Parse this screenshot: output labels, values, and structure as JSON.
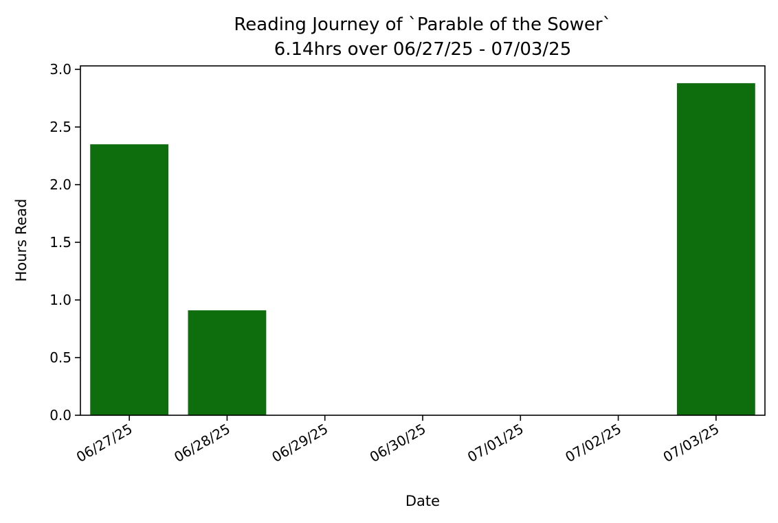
{
  "chart_data": {
    "type": "bar",
    "title": "Reading Journey of `Parable of the Sower`",
    "subtitle": "6.14hrs over 06/27/25 - 07/03/25",
    "xlabel": "Date",
    "ylabel": "Hours Read",
    "categories": [
      "06/27/25",
      "06/28/25",
      "06/29/25",
      "06/30/25",
      "07/01/25",
      "07/02/25",
      "07/03/25"
    ],
    "values": [
      2.35,
      0.91,
      0,
      0,
      0,
      0,
      2.88
    ],
    "ylim": [
      0,
      3.03
    ],
    "yticks": [
      0.0,
      0.5,
      1.0,
      1.5,
      2.0,
      2.5,
      3.0
    ],
    "ytick_labels": [
      "0.0",
      "0.5",
      "1.0",
      "1.5",
      "2.0",
      "2.5",
      "3.0"
    ],
    "bar_color": "#0e6e0e",
    "grid": false,
    "legend": "none"
  }
}
